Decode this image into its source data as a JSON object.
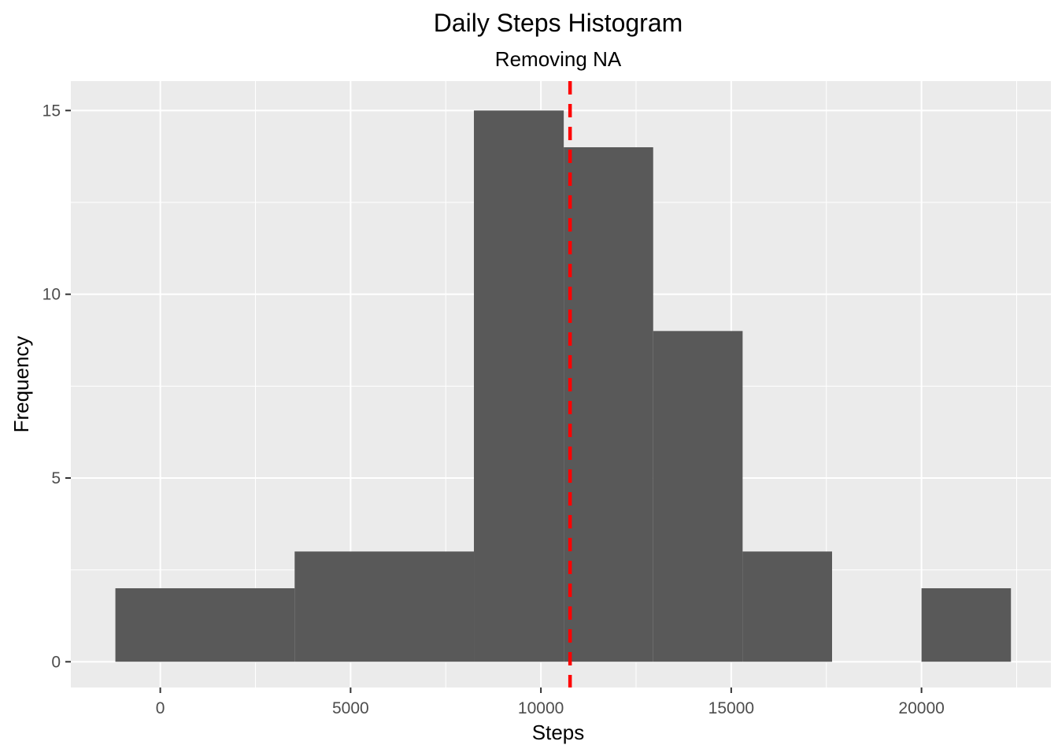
{
  "chart_data": {
    "type": "bar",
    "subtype": "histogram",
    "title": "Daily Steps Histogram",
    "subtitle": "Removing NA",
    "xlabel": "Steps",
    "ylabel": "Frequency",
    "xlim": [
      -2350,
      23400
    ],
    "ylim": [
      -0.7,
      15.8
    ],
    "x_ticks": [
      0,
      5000,
      10000,
      15000,
      20000
    ],
    "x_tick_labels": [
      "0",
      "5000",
      "10000",
      "15000",
      "20000"
    ],
    "y_ticks": [
      0,
      5,
      10,
      15
    ],
    "y_tick_labels": [
      "0",
      "5",
      "10",
      "15"
    ],
    "bins": [
      {
        "start": -1180,
        "end": 3530,
        "count": 2
      },
      {
        "start": 3530,
        "end": 8240,
        "count": 3
      },
      {
        "start": 8240,
        "end": 10600,
        "count": 15
      },
      {
        "start": 10600,
        "end": 12950,
        "count": 14
      },
      {
        "start": 12950,
        "end": 15300,
        "count": 9
      },
      {
        "start": 15300,
        "end": 17650,
        "count": 3
      },
      {
        "start": 17650,
        "end": 20000,
        "count": 0
      },
      {
        "start": 20000,
        "end": 22350,
        "count": 2
      }
    ],
    "reference_line": {
      "x": 10766,
      "style": "dashed"
    },
    "bar_color": "#595959",
    "line_color": "#FF0000",
    "panel_color": "#EBEBEB",
    "grid_color": "#FFFFFF",
    "grid": true,
    "legend": "none"
  }
}
